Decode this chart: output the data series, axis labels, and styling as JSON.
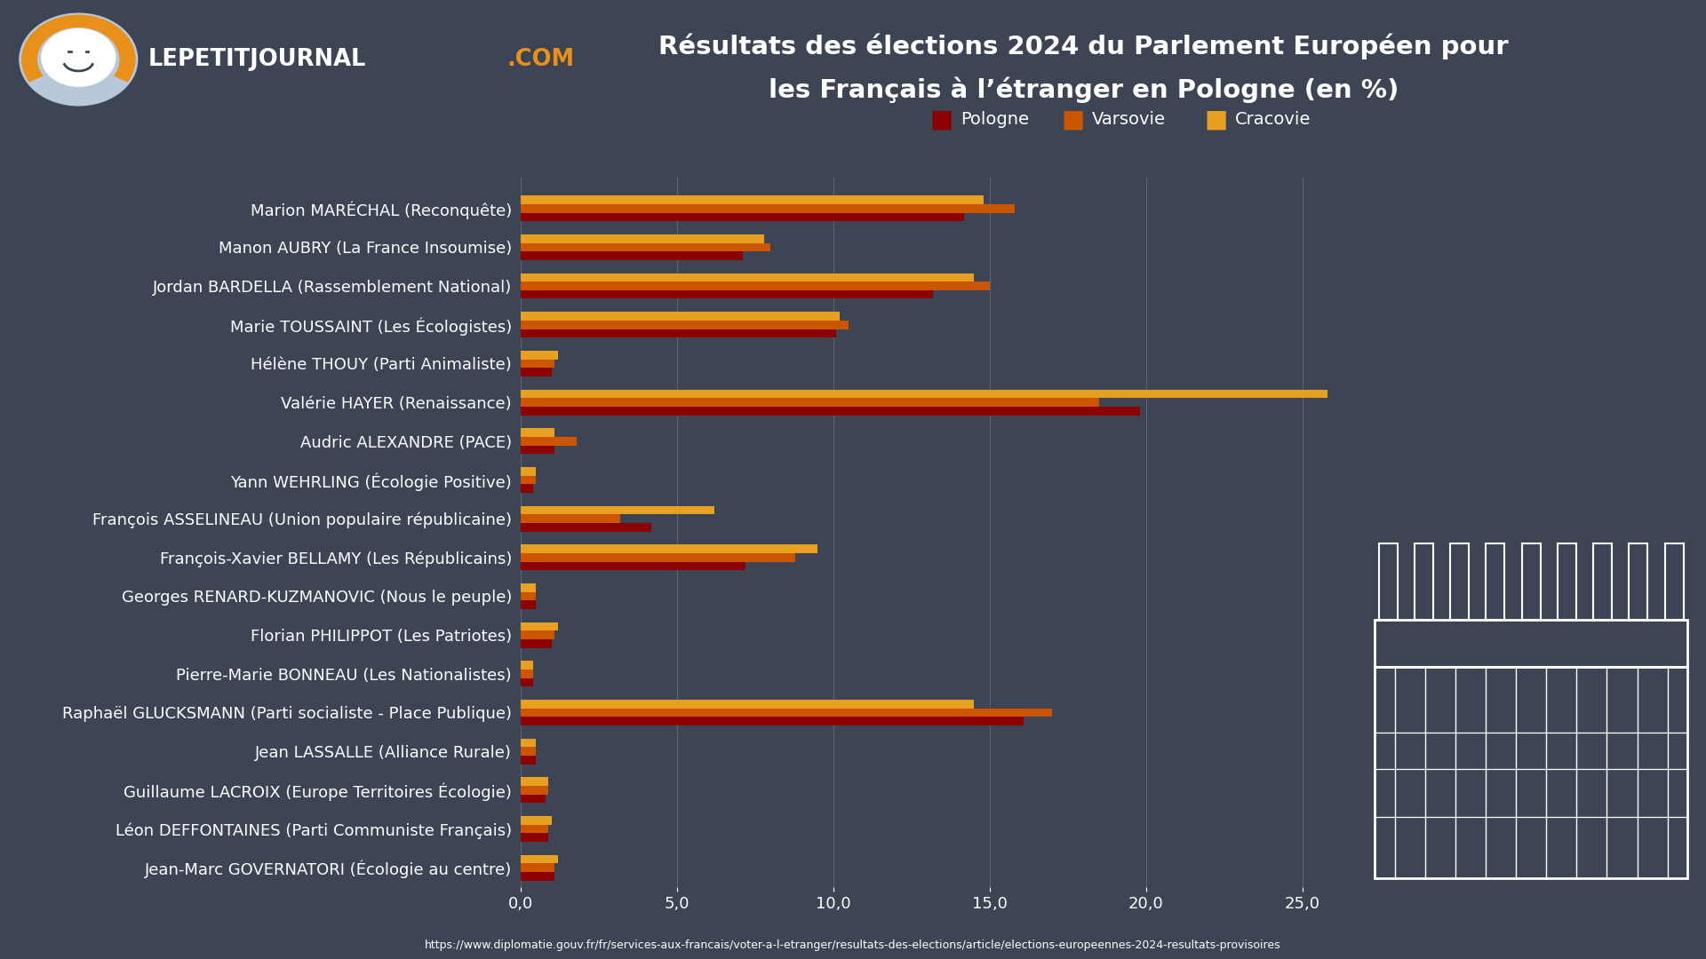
{
  "title_line1": "Résultats des élections 2024 du Parlement Européen pour",
  "title_line2": "les Français à l’étranger en Pologne (en %)",
  "background_color": "#3d4555",
  "bar_height": 0.22,
  "categories": [
    "Marion MARÉCHAL (Reconquête)",
    "Manon AUBRY (La France Insoumise)",
    "Jordan BARDELLA (Rassemblement National)",
    "Marie TOUSSAINT (Les Écologistes)",
    "Hélène THOUY (Parti Animaliste)",
    "Valérie HAYER (Renaissance)",
    "Audric ALEXANDRE (PACE)",
    "Yann WEHRLING (Écologie Positive)",
    "François ASSELINEAU (Union populaire républicaine)",
    "François-Xavier BELLAMY (Les Républicains)",
    "Georges RENARD-KUZMANOVIC (Nous le peuple)",
    "Florian PHILIPPOT (Les Patriotes)",
    "Pierre-Marie BONNEAU (Les Nationalistes)",
    "Raphaël GLUCKSMANN (Parti socialiste - Place Publique)",
    "Jean LASSALLE (Alliance Rurale)",
    "Guillaume LACROIX (Europe Territoires Écologie)",
    "Léon DEFFONTAINES (Parti Communiste Français)",
    "Jean-Marc GOVERNATORI (Écologie au centre)"
  ],
  "pologne": [
    14.2,
    7.1,
    13.2,
    10.1,
    1.0,
    19.8,
    1.1,
    0.4,
    4.2,
    7.2,
    0.5,
    1.0,
    0.4,
    16.1,
    0.5,
    0.8,
    0.9,
    1.1
  ],
  "varsovie": [
    15.8,
    8.0,
    15.0,
    10.5,
    1.1,
    18.5,
    1.8,
    0.5,
    3.2,
    8.8,
    0.5,
    1.1,
    0.4,
    17.0,
    0.5,
    0.9,
    0.9,
    1.1
  ],
  "cracovie": [
    14.8,
    7.8,
    14.5,
    10.2,
    1.2,
    25.8,
    1.1,
    0.5,
    6.2,
    9.5,
    0.5,
    1.2,
    0.4,
    14.5,
    0.5,
    0.9,
    1.0,
    1.2
  ],
  "color_pologne": "#8B0000",
  "color_varsovie": "#CC5500",
  "color_cracovie": "#E8A020",
  "text_color": "#FFFFFF",
  "legend_labels": [
    "Pologne",
    "Varsovie",
    "Cracovie"
  ],
  "source_url": "https://www.diplomatie.gouv.fr/fr/services-aux-francais/voter-a-l-etranger/resultats-des-elections/article/elections-europeennes-2024-resultats-provisoires",
  "xlim": [
    0,
    27
  ],
  "xticks": [
    0,
    5,
    10,
    15,
    20,
    25
  ],
  "xtick_labels": [
    "0,0",
    "5,0",
    "10,0",
    "15,0",
    "20,0",
    "25,0"
  ]
}
